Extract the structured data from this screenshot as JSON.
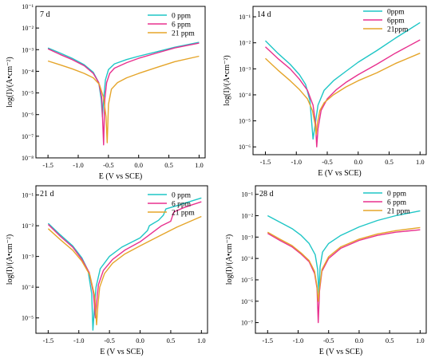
{
  "colors": {
    "s0": "#1ec6c6",
    "s6": "#e8308e",
    "s21": "#e5a52a",
    "axis": "#000000"
  },
  "chart_data": [
    {
      "type": "line",
      "title": "7 d",
      "xlabel": "E (V vs SCE)",
      "ylabel": "log(I)/(A•cm⁻²)",
      "log_y": true,
      "xlim": [
        -1.7,
        1.1
      ],
      "ylim_exp": [
        -8,
        -1
      ],
      "xticks": [
        "-1.5",
        "-1.0",
        "-0.5",
        "0.0",
        "0.5",
        "1.0"
      ],
      "yticks": [
        "10⁻⁸",
        "10⁻⁷",
        "10⁻⁶",
        "10⁻⁵",
        "10⁻⁴",
        "10⁻³",
        "10⁻²",
        "10⁻¹"
      ],
      "legend_position": "top-right",
      "series": [
        {
          "name": "0 ppm",
          "color_key": "s0",
          "x": [
            -1.5,
            -1.3,
            -1.1,
            -0.9,
            -0.75,
            -0.66,
            -0.62,
            -0.6,
            -0.58,
            -0.55,
            -0.5,
            -0.4,
            -0.2,
            0.0,
            0.3,
            0.6,
            1.0
          ],
          "y": [
            0.0012,
            0.0007,
            0.0004,
            0.0002,
            9e-05,
            3e-05,
            5e-06,
            8e-07,
            5e-06,
            4e-05,
            0.00012,
            0.00022,
            0.00035,
            0.0005,
            0.0008,
            0.0013,
            0.0022
          ]
        },
        {
          "name": "6 ppm",
          "color_key": "s6",
          "x": [
            -1.5,
            -1.3,
            -1.1,
            -0.9,
            -0.75,
            -0.66,
            -0.61,
            -0.58,
            -0.56,
            -0.53,
            -0.48,
            -0.4,
            -0.2,
            0.0,
            0.3,
            0.6,
            1.0
          ],
          "y": [
            0.0011,
            0.0006,
            0.00035,
            0.00018,
            8e-05,
            3e-05,
            6e-06,
            4e-08,
            5e-06,
            3e-05,
            8e-05,
            0.00014,
            0.00025,
            0.0004,
            0.0007,
            0.0012,
            0.002
          ]
        },
        {
          "name": "21 ppm",
          "color_key": "s21",
          "x": [
            -1.5,
            -1.3,
            -1.1,
            -0.9,
            -0.75,
            -0.65,
            -0.58,
            -0.54,
            -0.52,
            -0.5,
            -0.45,
            -0.35,
            -0.2,
            0.0,
            0.3,
            0.6,
            1.0
          ],
          "y": [
            0.0003,
            0.0002,
            0.00013,
            8e-05,
            5e-05,
            2.5e-05,
            6e-06,
            8e-07,
            5e-08,
            3e-06,
            1.5e-05,
            3e-05,
            5e-05,
            8e-05,
            0.00015,
            0.00028,
            0.0005
          ]
        }
      ]
    },
    {
      "type": "line",
      "title": "14 d",
      "xlabel": "E (V vs SCE)",
      "ylabel": "log(I)/(A•cm⁻²)",
      "log_y": true,
      "xlim": [
        -1.7,
        1.1
      ],
      "ylim_exp": [
        -6.3,
        -0.6
      ],
      "xticks": [
        "-1.5",
        "-1.0",
        "-0.5",
        "0.0",
        "0.5",
        "1.0"
      ],
      "yticks": [
        "10⁻⁶",
        "10⁻⁵",
        "10⁻⁴",
        "10⁻³",
        "10⁻²",
        "10⁻¹"
      ],
      "legend_position": "top-right",
      "series": [
        {
          "name": "0ppm",
          "color_key": "s0",
          "x": [
            -1.5,
            -1.3,
            -1.1,
            -0.95,
            -0.85,
            -0.78,
            -0.75,
            -0.73,
            -0.7,
            -0.65,
            -0.55,
            -0.4,
            -0.2,
            0.0,
            0.3,
            0.6,
            1.0
          ],
          "y": [
            0.012,
            0.004,
            0.0015,
            0.0006,
            0.00025,
            6e-05,
            8e-06,
            2e-06,
            6e-06,
            4e-05,
            0.00015,
            0.00035,
            0.0008,
            0.0018,
            0.005,
            0.015,
            0.06
          ]
        },
        {
          "name": "6ppm",
          "color_key": "s6",
          "x": [
            -1.5,
            -1.3,
            -1.1,
            -0.95,
            -0.82,
            -0.73,
            -0.69,
            -0.67,
            -0.65,
            -0.6,
            -0.5,
            -0.35,
            -0.2,
            0.0,
            0.3,
            0.6,
            1.0
          ],
          "y": [
            0.007,
            0.0025,
            0.001,
            0.0004,
            0.00015,
            4e-05,
            8e-06,
            1e-06,
            5e-06,
            2.5e-05,
            7e-05,
            0.00016,
            0.0003,
            0.0006,
            0.0015,
            0.004,
            0.013
          ]
        },
        {
          "name": "21ppm",
          "color_key": "s21",
          "x": [
            -1.5,
            -1.3,
            -1.1,
            -0.95,
            -0.82,
            -0.74,
            -0.7,
            -0.68,
            -0.66,
            -0.62,
            -0.55,
            -0.4,
            -0.2,
            0.0,
            0.3,
            0.6,
            1.0
          ],
          "y": [
            0.0025,
            0.0009,
            0.00035,
            0.00016,
            7e-05,
            2.5e-05,
            8e-06,
            3e-06,
            8e-06,
            2.5e-05,
            5e-05,
            0.0001,
            0.0002,
            0.00035,
            0.0007,
            0.0016,
            0.004
          ]
        }
      ]
    },
    {
      "type": "line",
      "title": "21 d",
      "xlabel": "E (V vs SCE)",
      "ylabel": "log(I)/(A•cm⁻²)",
      "log_y": true,
      "xlim": [
        -1.7,
        1.1
      ],
      "ylim_exp": [
        -5.5,
        -0.7
      ],
      "xticks": [
        "-1.5",
        "-1.0",
        "-0.5",
        "0.0",
        "0.5",
        "1.0"
      ],
      "yticks": [
        "10⁻⁵",
        "10⁻⁴",
        "10⁻³",
        "10⁻²",
        "10⁻¹"
      ],
      "legend_position": "top-right",
      "series": [
        {
          "name": "0 ppm",
          "color_key": "s0",
          "x": [
            -1.5,
            -1.3,
            -1.1,
            -0.95,
            -0.85,
            -0.79,
            -0.77,
            -0.75,
            -0.72,
            -0.65,
            -0.5,
            -0.3,
            0.0,
            0.12,
            0.15,
            0.3,
            0.38,
            0.42,
            0.6,
            0.8,
            1.0
          ],
          "y": [
            0.012,
            0.005,
            0.0022,
            0.0009,
            0.00035,
            6e-05,
            4e-06,
            1.5e-05,
            0.0001,
            0.0004,
            0.001,
            0.002,
            0.004,
            0.007,
            0.01,
            0.015,
            0.022,
            0.035,
            0.045,
            0.06,
            0.08
          ]
        },
        {
          "name": "6 ppm",
          "color_key": "s6",
          "x": [
            -1.5,
            -1.3,
            -1.1,
            -0.95,
            -0.83,
            -0.76,
            -0.73,
            -0.71,
            -0.68,
            -0.6,
            -0.45,
            -0.25,
            0.0,
            0.2,
            0.35,
            0.5,
            0.55,
            0.7,
            0.85,
            1.0
          ],
          "y": [
            0.011,
            0.0045,
            0.002,
            0.0008,
            0.0003,
            6e-05,
            1e-05,
            3e-05,
            0.00012,
            0.00035,
            0.0008,
            0.0016,
            0.003,
            0.006,
            0.01,
            0.014,
            0.028,
            0.038,
            0.048,
            0.06
          ]
        },
        {
          "name": "21 ppm",
          "color_key": "s21",
          "x": [
            -1.5,
            -1.3,
            -1.1,
            -0.95,
            -0.82,
            -0.74,
            -0.71,
            -0.69,
            -0.66,
            -0.58,
            -0.45,
            -0.25,
            0.0,
            0.3,
            0.6,
            1.0
          ],
          "y": [
            0.008,
            0.0035,
            0.0016,
            0.0007,
            0.00025,
            5e-05,
            6e-06,
            2.5e-05,
            0.0001,
            0.00028,
            0.0006,
            0.0012,
            0.0022,
            0.0045,
            0.009,
            0.02
          ]
        }
      ]
    },
    {
      "type": "line",
      "title": "28 d",
      "xlabel": "E (V vs SCE)",
      "ylabel": "log(I)/(A•cm⁻²)",
      "log_y": true,
      "xlim": [
        -1.7,
        1.1
      ],
      "ylim_exp": [
        -7.5,
        -0.6
      ],
      "xticks": [
        "-1.5",
        "-1.0",
        "-0.5",
        "0.0",
        "0.5",
        "1.0"
      ],
      "yticks": [
        "10⁻⁷",
        "10⁻⁶",
        "10⁻⁵",
        "10⁻⁴",
        "10⁻³",
        "10⁻²",
        "10⁻¹"
      ],
      "legend_position": "top-right",
      "series": [
        {
          "name": "0 ppm",
          "color_key": "s0",
          "x": [
            -1.5,
            -1.3,
            -1.1,
            -0.95,
            -0.82,
            -0.72,
            -0.68,
            -0.66,
            -0.64,
            -0.6,
            -0.5,
            -0.3,
            0.0,
            0.3,
            0.6,
            1.0
          ],
          "y": [
            0.01,
            0.005,
            0.0025,
            0.0012,
            0.0005,
            0.00015,
            3e-05,
            2e-06,
            4e-05,
            0.0002,
            0.0005,
            0.0012,
            0.003,
            0.006,
            0.01,
            0.017
          ]
        },
        {
          "name": "6 ppm",
          "color_key": "s6",
          "x": [
            -1.5,
            -1.3,
            -1.1,
            -0.95,
            -0.82,
            -0.73,
            -0.69,
            -0.67,
            -0.65,
            -0.61,
            -0.5,
            -0.3,
            0.0,
            0.3,
            0.6,
            1.0
          ],
          "y": [
            0.0015,
            0.0007,
            0.00035,
            0.00016,
            7e-05,
            2e-05,
            4e-06,
            1e-07,
            3e-06,
            2.5e-05,
            0.0001,
            0.0003,
            0.0007,
            0.0012,
            0.0017,
            0.0022
          ]
        },
        {
          "name": "21 ppm",
          "color_key": "s21",
          "x": [
            -1.5,
            -1.3,
            -1.1,
            -0.95,
            -0.82,
            -0.73,
            -0.69,
            -0.67,
            -0.65,
            -0.61,
            -0.5,
            -0.3,
            0.0,
            0.3,
            0.6,
            1.0
          ],
          "y": [
            0.0017,
            0.0008,
            0.0004,
            0.00018,
            8e-05,
            2.5e-05,
            5e-06,
            1e-06,
            4e-06,
            3e-05,
            0.00012,
            0.00035,
            0.0008,
            0.0014,
            0.002,
            0.0028
          ]
        }
      ]
    }
  ]
}
